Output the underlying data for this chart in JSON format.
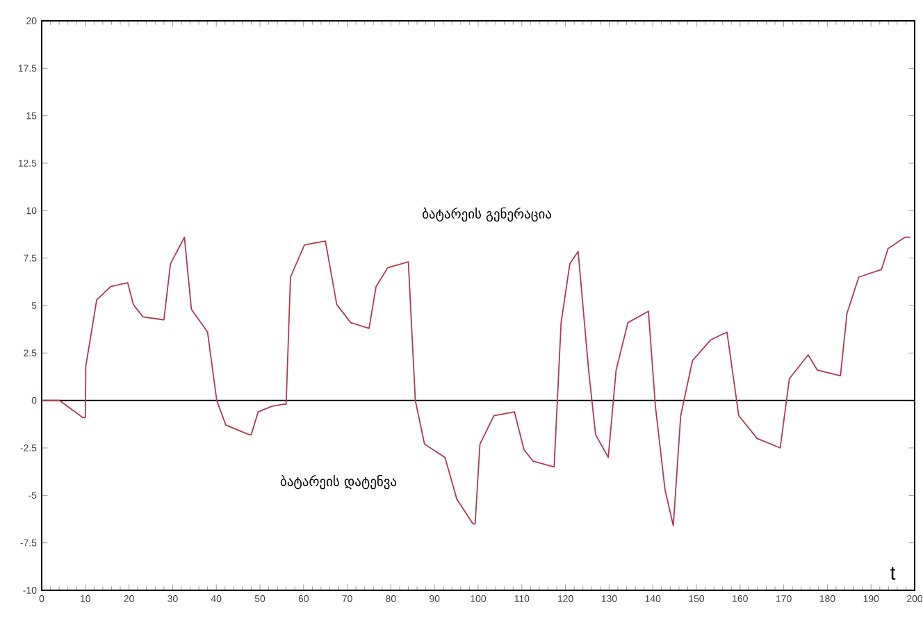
{
  "chart_data": {
    "type": "line",
    "xlabel": "t",
    "xlim": [
      0,
      200
    ],
    "ylim": [
      -10,
      20
    ],
    "xticks": [
      0,
      10,
      20,
      30,
      40,
      50,
      60,
      70,
      80,
      90,
      100,
      110,
      120,
      130,
      140,
      150,
      160,
      170,
      180,
      190,
      200
    ],
    "yticks": [
      -10,
      -7.5,
      -5,
      -2.5,
      0,
      2.5,
      5,
      7.5,
      10,
      12.5,
      15,
      17.5,
      20
    ],
    "grid": false,
    "marker": "none",
    "line_style": "solid",
    "ref_lines": [
      {
        "axis": "y",
        "value": 0,
        "color": "#000000"
      }
    ],
    "annotations": [
      "ბატარეის გენერაცია",
      "ბატარეის დატენვა"
    ],
    "series": [
      {
        "color": "#b03a48",
        "x": [
          0,
          4.1,
          9.4,
          10,
          10.1,
          12.6,
          15.8,
          19.7,
          21,
          23.2,
          27.9,
          28,
          29.5,
          32.7,
          34.3,
          38,
          40.1,
          42.2,
          47.5,
          48,
          49.6,
          52.8,
          55.4,
          56,
          57,
          60.2,
          65,
          67.6,
          70.8,
          75,
          76.6,
          79.3,
          84,
          85.6,
          87.7,
          92.4,
          95.1,
          98.8,
          99.3,
          100.4,
          103.6,
          108.3,
          110.5,
          112.6,
          117.4,
          119,
          121,
          122.9,
          125.3,
          126.9,
          129.8,
          131.6,
          134.3,
          139,
          140.6,
          142.8,
          144.7,
          146.4,
          149.1,
          153.3,
          157,
          159.7,
          163.9,
          169.2,
          171.3,
          175.6,
          177.7,
          183,
          184.5,
          187.2,
          192.4,
          193.9,
          197.8,
          199
        ],
        "values": [
          0,
          0,
          -0.9,
          -0.9,
          1.8,
          5.3,
          6.0,
          6.2,
          5.05,
          4.4,
          4.25,
          4.25,
          7.2,
          8.6,
          4.8,
          3.6,
          0,
          -1.3,
          -1.8,
          -1.8,
          -0.6,
          -0.3,
          -0.2,
          -0.2,
          6.5,
          8.2,
          8.4,
          5.05,
          4.1,
          3.8,
          6.0,
          7.0,
          7.3,
          0,
          -2.3,
          -3.0,
          -5.2,
          -6.5,
          -6.5,
          -2.3,
          -0.8,
          -0.6,
          -2.6,
          -3.2,
          -3.5,
          4.1,
          7.2,
          7.85,
          1.6,
          -1.8,
          -3.0,
          1.6,
          4.1,
          4.7,
          -0.3,
          -4.7,
          -6.6,
          -0.8,
          2.1,
          3.2,
          3.6,
          -0.8,
          -2.0,
          -2.5,
          1.15,
          2.4,
          1.6,
          1.3,
          4.6,
          6.5,
          6.9,
          8.0,
          8.6,
          8.6
        ]
      }
    ]
  }
}
